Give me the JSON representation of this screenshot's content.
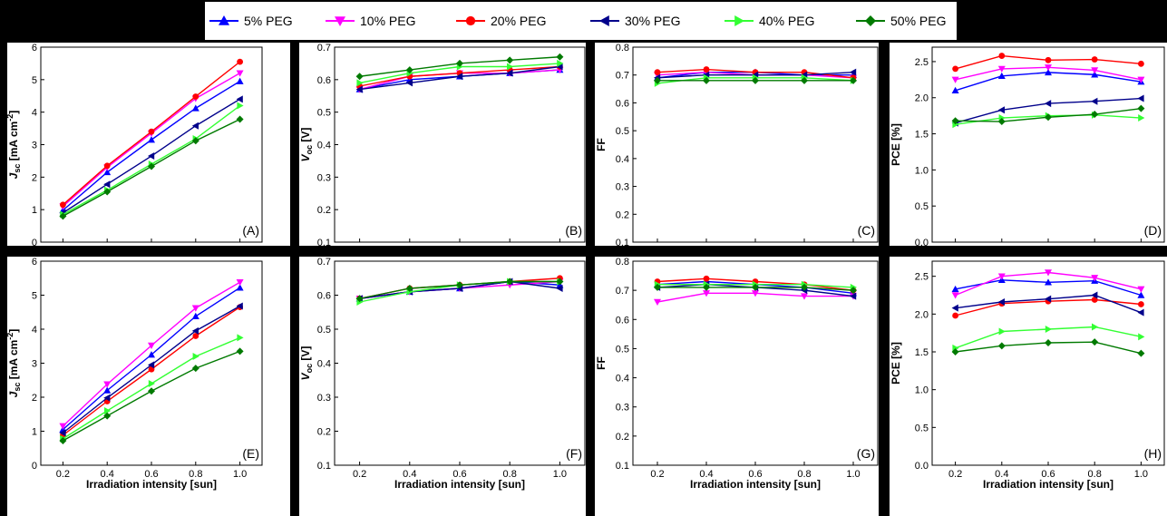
{
  "legend": [
    {
      "name": "5% PEG",
      "color": "#0000ff",
      "marker": "triangle-up"
    },
    {
      "name": "10% PEG",
      "color": "#ff00ff",
      "marker": "triangle-down"
    },
    {
      "name": "20% PEG",
      "color": "#ff0000",
      "marker": "circle"
    },
    {
      "name": "30% PEG",
      "color": "#00008b",
      "marker": "triangle-left"
    },
    {
      "name": "40% PEG",
      "color": "#33ff33",
      "marker": "triangle-right"
    },
    {
      "name": "50% PEG",
      "color": "#007a00",
      "marker": "diamond"
    }
  ],
  "chart_data": [
    {
      "type": "line",
      "panel_label": "(A)",
      "ylabel": "Jsc [mA cm-2]",
      "xlabel": "Irradiation intensity [sun]",
      "x": [
        0.2,
        0.4,
        0.6,
        0.8,
        1.0
      ],
      "xlim": [
        0.1,
        1.1
      ],
      "xticks": [
        "0.2",
        "0.4",
        "0.6",
        "0.8",
        "1.0"
      ],
      "ylim": [
        0,
        6
      ],
      "yticks": [
        "0",
        "1",
        "2",
        "3",
        "4",
        "5",
        "6"
      ],
      "series": [
        {
          "name": "5% PEG",
          "values": [
            0.98,
            2.15,
            3.15,
            4.12,
            4.95
          ]
        },
        {
          "name": "10% PEG",
          "values": [
            1.1,
            2.3,
            3.35,
            4.42,
            5.2
          ]
        },
        {
          "name": "20% PEG",
          "values": [
            1.15,
            2.35,
            3.4,
            4.48,
            5.55
          ]
        },
        {
          "name": "30% PEG",
          "values": [
            0.9,
            1.78,
            2.65,
            3.58,
            4.4
          ]
        },
        {
          "name": "40% PEG",
          "values": [
            0.85,
            1.6,
            2.4,
            3.18,
            4.2
          ]
        },
        {
          "name": "50% PEG",
          "values": [
            0.8,
            1.55,
            2.33,
            3.12,
            3.78
          ]
        }
      ]
    },
    {
      "type": "line",
      "panel_label": "(B)",
      "ylabel": "Voc [V]",
      "xlabel": "Irradiation intensity [sun]",
      "x": [
        0.2,
        0.4,
        0.6,
        0.8,
        1.0
      ],
      "xlim": [
        0.1,
        1.1
      ],
      "xticks": [
        "0.2",
        "0.4",
        "0.6",
        "0.8",
        "1.0"
      ],
      "ylim": [
        0.1,
        0.7
      ],
      "yticks": [
        "0.1",
        "0.2",
        "0.3",
        "0.4",
        "0.5",
        "0.6",
        "0.7"
      ],
      "series": [
        {
          "name": "5% PEG",
          "values": [
            0.57,
            0.6,
            0.61,
            0.62,
            0.63
          ]
        },
        {
          "name": "10% PEG",
          "values": [
            0.57,
            0.61,
            0.62,
            0.62,
            0.63
          ]
        },
        {
          "name": "20% PEG",
          "values": [
            0.58,
            0.61,
            0.62,
            0.63,
            0.64
          ]
        },
        {
          "name": "30% PEG",
          "values": [
            0.57,
            0.59,
            0.61,
            0.62,
            0.64
          ]
        },
        {
          "name": "40% PEG",
          "values": [
            0.59,
            0.62,
            0.64,
            0.64,
            0.65
          ]
        },
        {
          "name": "50% PEG",
          "values": [
            0.61,
            0.63,
            0.65,
            0.66,
            0.67
          ]
        }
      ]
    },
    {
      "type": "line",
      "panel_label": "(C)",
      "ylabel": "FF",
      "xlabel": "Irradiation intensity [sun]",
      "x": [
        0.2,
        0.4,
        0.6,
        0.8,
        1.0
      ],
      "xlim": [
        0.1,
        1.1
      ],
      "xticks": [
        "0.2",
        "0.4",
        "0.6",
        "0.8",
        "1.0"
      ],
      "ylim": [
        0.1,
        0.8
      ],
      "yticks": [
        "0.1",
        "0.2",
        "0.3",
        "0.4",
        "0.5",
        "0.6",
        "0.7",
        "0.8"
      ],
      "series": [
        {
          "name": "5% PEG",
          "values": [
            0.69,
            0.71,
            0.71,
            0.7,
            0.7
          ]
        },
        {
          "name": "10% PEG",
          "values": [
            0.7,
            0.71,
            0.7,
            0.7,
            0.69
          ]
        },
        {
          "name": "20% PEG",
          "values": [
            0.71,
            0.72,
            0.71,
            0.71,
            0.69
          ]
        },
        {
          "name": "30% PEG",
          "values": [
            0.69,
            0.7,
            0.7,
            0.7,
            0.71
          ]
        },
        {
          "name": "40% PEG",
          "values": [
            0.67,
            0.69,
            0.69,
            0.69,
            0.68
          ]
        },
        {
          "name": "50% PEG",
          "values": [
            0.68,
            0.68,
            0.68,
            0.68,
            0.68
          ]
        }
      ]
    },
    {
      "type": "line",
      "panel_label": "(D)",
      "ylabel": "PCE [%]",
      "xlabel": "Irradiation intensity [sun]",
      "x": [
        0.2,
        0.4,
        0.6,
        0.8,
        1.0
      ],
      "xlim": [
        0.1,
        1.1
      ],
      "xticks": [
        "0.2",
        "0.4",
        "0.6",
        "0.8",
        "1.0"
      ],
      "ylim": [
        0,
        2.7
      ],
      "yticks": [
        "0.0",
        "0.5",
        "1.0",
        "1.5",
        "2.0",
        "2.5"
      ],
      "series": [
        {
          "name": "5% PEG",
          "values": [
            2.1,
            2.3,
            2.35,
            2.32,
            2.22
          ]
        },
        {
          "name": "10% PEG",
          "values": [
            2.25,
            2.4,
            2.42,
            2.38,
            2.25
          ]
        },
        {
          "name": "20% PEG",
          "values": [
            2.4,
            2.58,
            2.52,
            2.53,
            2.47
          ]
        },
        {
          "name": "30% PEG",
          "values": [
            1.65,
            1.83,
            1.92,
            1.95,
            1.99
          ]
        },
        {
          "name": "40% PEG",
          "values": [
            1.63,
            1.72,
            1.75,
            1.76,
            1.72
          ]
        },
        {
          "name": "50% PEG",
          "values": [
            1.68,
            1.67,
            1.73,
            1.77,
            1.85
          ]
        }
      ]
    },
    {
      "type": "line",
      "panel_label": "(E)",
      "ylabel": "Jsc [mA cm-2]",
      "xlabel": "Irradiation intensity [sun]",
      "x": [
        0.2,
        0.4,
        0.6,
        0.8,
        1.0
      ],
      "xlim": [
        0.1,
        1.1
      ],
      "xticks": [
        "0.2",
        "0.4",
        "0.6",
        "0.8",
        "1.0"
      ],
      "ylim": [
        0,
        6
      ],
      "yticks": [
        "0",
        "1",
        "2",
        "3",
        "4",
        "5",
        "6"
      ],
      "series": [
        {
          "name": "5% PEG",
          "values": [
            1.05,
            2.2,
            3.25,
            4.38,
            5.22
          ]
        },
        {
          "name": "10% PEG",
          "values": [
            1.15,
            2.38,
            3.52,
            4.62,
            5.38
          ]
        },
        {
          "name": "20% PEG",
          "values": [
            0.88,
            1.88,
            2.82,
            3.8,
            4.65
          ]
        },
        {
          "name": "30% PEG",
          "values": [
            0.95,
            1.98,
            2.95,
            3.95,
            4.68
          ]
        },
        {
          "name": "40% PEG",
          "values": [
            0.78,
            1.6,
            2.4,
            3.2,
            3.75
          ]
        },
        {
          "name": "50% PEG",
          "values": [
            0.72,
            1.45,
            2.18,
            2.85,
            3.35
          ]
        }
      ]
    },
    {
      "type": "line",
      "panel_label": "(F)",
      "ylabel": "Voc [V]",
      "xlabel": "Irradiation intensity [sun]",
      "x": [
        0.2,
        0.4,
        0.6,
        0.8,
        1.0
      ],
      "xlim": [
        0.1,
        1.1
      ],
      "xticks": [
        "0.2",
        "0.4",
        "0.6",
        "0.8",
        "1.0"
      ],
      "ylim": [
        0.1,
        0.7
      ],
      "yticks": [
        "0.1",
        "0.2",
        "0.3",
        "0.4",
        "0.5",
        "0.6",
        "0.7"
      ],
      "series": [
        {
          "name": "5% PEG",
          "values": [
            0.59,
            0.61,
            0.62,
            0.64,
            0.63
          ]
        },
        {
          "name": "10% PEG",
          "values": [
            0.59,
            0.61,
            0.62,
            0.63,
            0.64
          ]
        },
        {
          "name": "20% PEG",
          "values": [
            0.59,
            0.62,
            0.63,
            0.64,
            0.65
          ]
        },
        {
          "name": "30% PEG",
          "values": [
            0.59,
            0.61,
            0.62,
            0.64,
            0.62
          ]
        },
        {
          "name": "40% PEG",
          "values": [
            0.58,
            0.61,
            0.63,
            0.64,
            0.64
          ]
        },
        {
          "name": "50% PEG",
          "values": [
            0.59,
            0.62,
            0.63,
            0.64,
            0.64
          ]
        }
      ]
    },
    {
      "type": "line",
      "panel_label": "(G)",
      "ylabel": "FF",
      "xlabel": "Irradiation intensity [sun]",
      "x": [
        0.2,
        0.4,
        0.6,
        0.8,
        1.0
      ],
      "xlim": [
        0.1,
        1.1
      ],
      "xticks": [
        "0.2",
        "0.4",
        "0.6",
        "0.8",
        "1.0"
      ],
      "ylim": [
        0.1,
        0.8
      ],
      "yticks": [
        "0.1",
        "0.2",
        "0.3",
        "0.4",
        "0.5",
        "0.6",
        "0.7",
        "0.8"
      ],
      "series": [
        {
          "name": "5% PEG",
          "values": [
            0.72,
            0.73,
            0.72,
            0.71,
            0.69
          ]
        },
        {
          "name": "10% PEG",
          "values": [
            0.66,
            0.69,
            0.69,
            0.68,
            0.68
          ]
        },
        {
          "name": "20% PEG",
          "values": [
            0.73,
            0.74,
            0.73,
            0.72,
            0.7
          ]
        },
        {
          "name": "30% PEG",
          "values": [
            0.71,
            0.72,
            0.71,
            0.7,
            0.68
          ]
        },
        {
          "name": "40% PEG",
          "values": [
            0.72,
            0.72,
            0.72,
            0.72,
            0.71
          ]
        },
        {
          "name": "50% PEG",
          "values": [
            0.71,
            0.71,
            0.71,
            0.71,
            0.7
          ]
        }
      ]
    },
    {
      "type": "line",
      "panel_label": "(H)",
      "ylabel": "PCE [%]",
      "xlabel": "Irradiation intensity [sun]",
      "x": [
        0.2,
        0.4,
        0.6,
        0.8,
        1.0
      ],
      "xlim": [
        0.1,
        1.1
      ],
      "xticks": [
        "0.2",
        "0.4",
        "0.6",
        "0.8",
        "1.0"
      ],
      "ylim": [
        0,
        2.7
      ],
      "yticks": [
        "0.0",
        "0.5",
        "1.0",
        "1.5",
        "2.0",
        "2.5"
      ],
      "series": [
        {
          "name": "5% PEG",
          "values": [
            2.33,
            2.45,
            2.42,
            2.44,
            2.25
          ]
        },
        {
          "name": "10% PEG",
          "values": [
            2.25,
            2.5,
            2.55,
            2.48,
            2.33
          ]
        },
        {
          "name": "20% PEG",
          "values": [
            1.98,
            2.14,
            2.17,
            2.19,
            2.13
          ]
        },
        {
          "name": "30% PEG",
          "values": [
            2.08,
            2.16,
            2.2,
            2.25,
            2.02
          ]
        },
        {
          "name": "40% PEG",
          "values": [
            1.55,
            1.77,
            1.8,
            1.83,
            1.7
          ]
        },
        {
          "name": "50% PEG",
          "values": [
            1.5,
            1.58,
            1.62,
            1.63,
            1.48
          ]
        }
      ]
    }
  ]
}
